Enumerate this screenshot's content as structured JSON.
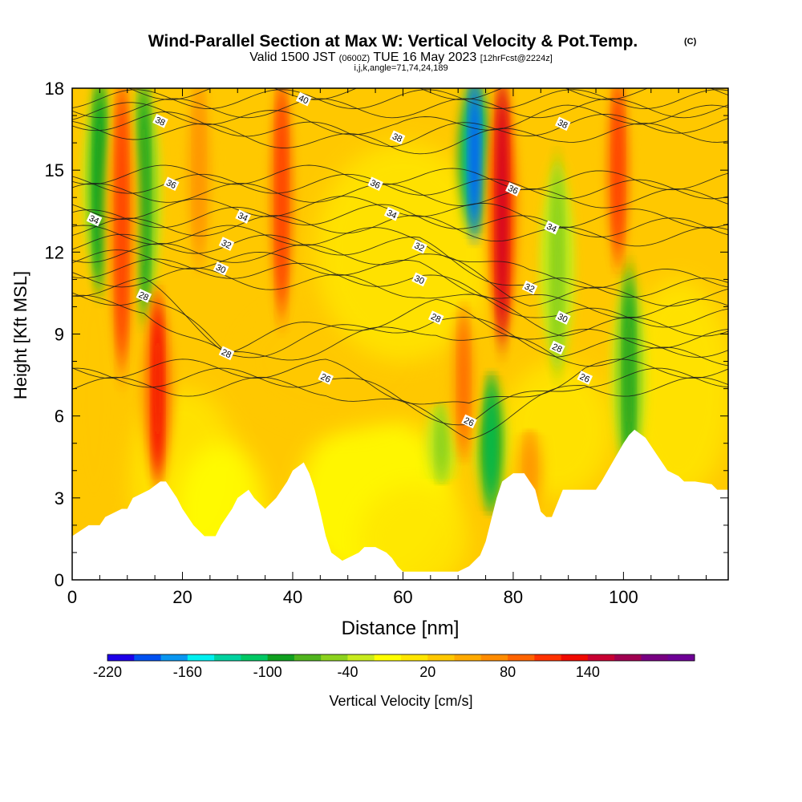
{
  "chart_data": {
    "type": "heatmap",
    "title": "Wind-Parallel Section at Max W: Vertical Velocity & Pot.Temp.",
    "title_mark": "(C)",
    "subtitle_pre": "Valid 1500 JST",
    "subtitle_zulu": "(0600Z)",
    "subtitle_date": "TUE 16 May 2023",
    "subtitle_fcst": "[12hrFcst@2224z]",
    "subtitle2": "i,j,k,angle=71,74,24,189",
    "xlabel": "Distance [nm]",
    "ylabel": "Height [Kft MSL]",
    "xlim": [
      0,
      119
    ],
    "ylim": [
      0,
      18
    ],
    "x_ticks": [
      "0",
      "20",
      "40",
      "60",
      "80",
      "100"
    ],
    "y_ticks": [
      "0",
      "3",
      "6",
      "9",
      "12",
      "15",
      "18"
    ],
    "colorbar": {
      "label": "Vertical Velocity [cm/s]",
      "min": -220,
      "step": 20,
      "colors": [
        "#1e00e8",
        "#0050f0",
        "#0a96f0",
        "#00f0f0",
        "#00d2a0",
        "#00c864",
        "#10a020",
        "#50b41e",
        "#8cd21e",
        "#c8eb1e",
        "#ffff00",
        "#ffe600",
        "#ffc800",
        "#ffaa00",
        "#ff8c00",
        "#ff6400",
        "#ff3200",
        "#f00a00",
        "#c80032",
        "#a00050",
        "#780082",
        "#6e0096"
      ],
      "tick_labels": [
        "-220",
        "-160",
        "-100",
        "-40",
        "20",
        "80",
        "140"
      ]
    },
    "updrafts_cm_s": [
      {
        "x": 9,
        "zmin": 8,
        "zmax": 18,
        "w": 110
      },
      {
        "x": 15.5,
        "zmin": 4,
        "zmax": 10,
        "w": 130
      },
      {
        "x": 23,
        "zmin": 12,
        "zmax": 18,
        "w": 70
      },
      {
        "x": 38,
        "zmin": 10,
        "zmax": 18,
        "w": 100
      },
      {
        "x": 71,
        "zmin": 5,
        "zmax": 9.5,
        "w": 80
      },
      {
        "x": 78,
        "zmin": 9,
        "zmax": 18,
        "w": 150
      },
      {
        "x": 99,
        "zmin": 12,
        "zmax": 18,
        "w": 110
      },
      {
        "x": 83,
        "zmin": 3,
        "zmax": 5,
        "w": 70
      }
    ],
    "downdrafts_cm_s": [
      {
        "x": 5,
        "zmin": 11,
        "zmax": 18,
        "w": -100
      },
      {
        "x": 13,
        "zmin": 10,
        "zmax": 18,
        "w": -90
      },
      {
        "x": 73,
        "zmin": 13,
        "zmax": 18,
        "w": -200
      },
      {
        "x": 76,
        "zmin": 3,
        "zmax": 7,
        "w": -110
      },
      {
        "x": 101,
        "zmin": 4,
        "zmax": 11,
        "w": -90
      },
      {
        "x": 88,
        "zmin": 8,
        "zmax": 15,
        "w": -60
      },
      {
        "x": 67,
        "zmin": 4,
        "zmax": 6,
        "w": -60
      }
    ],
    "theta_contour_labels": [
      {
        "text": "40",
        "x": 42,
        "z": 17.6
      },
      {
        "text": "38",
        "x": 16,
        "z": 16.8
      },
      {
        "text": "38",
        "x": 59,
        "z": 16.2
      },
      {
        "text": "38",
        "x": 89,
        "z": 16.7
      },
      {
        "text": "36",
        "x": 18,
        "z": 14.5
      },
      {
        "text": "36",
        "x": 55,
        "z": 14.5
      },
      {
        "text": "36",
        "x": 80,
        "z": 14.3
      },
      {
        "text": "34",
        "x": 4,
        "z": 13.2
      },
      {
        "text": "34",
        "x": 31,
        "z": 13.3
      },
      {
        "text": "34",
        "x": 58,
        "z": 13.4
      },
      {
        "text": "34",
        "x": 87,
        "z": 12.9
      },
      {
        "text": "32",
        "x": 28,
        "z": 12.3
      },
      {
        "text": "32",
        "x": 63,
        "z": 12.2
      },
      {
        "text": "32",
        "x": 83,
        "z": 10.7
      },
      {
        "text": "30",
        "x": 27,
        "z": 11.4
      },
      {
        "text": "30",
        "x": 63,
        "z": 11.0
      },
      {
        "text": "30",
        "x": 89,
        "z": 9.6
      },
      {
        "text": "28",
        "x": 13,
        "z": 10.4
      },
      {
        "text": "28",
        "x": 28,
        "z": 8.3
      },
      {
        "text": "28",
        "x": 66,
        "z": 9.6
      },
      {
        "text": "28",
        "x": 88,
        "z": 8.5
      },
      {
        "text": "26",
        "x": 46,
        "z": 7.4
      },
      {
        "text": "26",
        "x": 72,
        "z": 5.8
      },
      {
        "text": "26",
        "x": 93,
        "z": 7.4
      }
    ],
    "terrain_kft": [
      [
        0,
        1.6
      ],
      [
        3,
        2
      ],
      [
        5,
        2
      ],
      [
        6,
        2.3
      ],
      [
        9,
        2.6
      ],
      [
        10,
        2.6
      ],
      [
        11,
        3
      ],
      [
        14,
        3.3
      ],
      [
        16,
        3.6
      ],
      [
        17,
        3.6
      ],
      [
        18,
        3.3
      ],
      [
        19,
        3
      ],
      [
        20,
        2.6
      ],
      [
        21,
        2.3
      ],
      [
        22,
        2
      ],
      [
        24,
        1.6
      ],
      [
        26,
        1.6
      ],
      [
        27,
        2
      ],
      [
        28,
        2.3
      ],
      [
        29,
        2.6
      ],
      [
        30,
        3
      ],
      [
        32,
        3.3
      ],
      [
        33,
        3
      ],
      [
        35,
        2.6
      ],
      [
        37,
        3
      ],
      [
        38,
        3.3
      ],
      [
        39,
        3.6
      ],
      [
        40,
        4
      ],
      [
        42,
        4.3
      ],
      [
        43,
        3.9
      ],
      [
        44,
        3.3
      ],
      [
        45,
        2.5
      ],
      [
        46,
        1.6
      ],
      [
        47,
        1
      ],
      [
        49,
        0.7
      ],
      [
        51,
        0.9
      ],
      [
        52,
        1
      ],
      [
        53,
        1.2
      ],
      [
        55,
        1.2
      ],
      [
        57,
        1
      ],
      [
        58,
        0.8
      ],
      [
        59,
        0.5
      ],
      [
        60,
        0.3
      ],
      [
        61,
        0.3
      ],
      [
        63,
        0.3
      ],
      [
        66,
        0.3
      ],
      [
        68,
        0.3
      ],
      [
        70,
        0.3
      ],
      [
        72,
        0.5
      ],
      [
        74,
        0.9
      ],
      [
        75,
        1.4
      ],
      [
        76,
        2.2
      ],
      [
        77,
        3
      ],
      [
        78,
        3.6
      ],
      [
        80,
        3.9
      ],
      [
        82,
        3.9
      ],
      [
        84,
        3.3
      ],
      [
        85,
        2.5
      ],
      [
        86,
        2.3
      ],
      [
        87,
        2.3
      ],
      [
        88,
        2.8
      ],
      [
        89,
        3.3
      ],
      [
        91,
        3.3
      ],
      [
        93,
        3.3
      ],
      [
        95,
        3.3
      ],
      [
        96,
        3.6
      ],
      [
        98,
        4.3
      ],
      [
        100,
        5
      ],
      [
        101,
        5.3
      ],
      [
        102,
        5.5
      ],
      [
        104,
        5.2
      ],
      [
        106,
        4.6
      ],
      [
        108,
        4
      ],
      [
        110,
        3.8
      ],
      [
        111,
        3.6
      ],
      [
        113,
        3.6
      ],
      [
        116,
        3.5
      ],
      [
        117,
        3.3
      ],
      [
        119,
        3.3
      ]
    ]
  }
}
